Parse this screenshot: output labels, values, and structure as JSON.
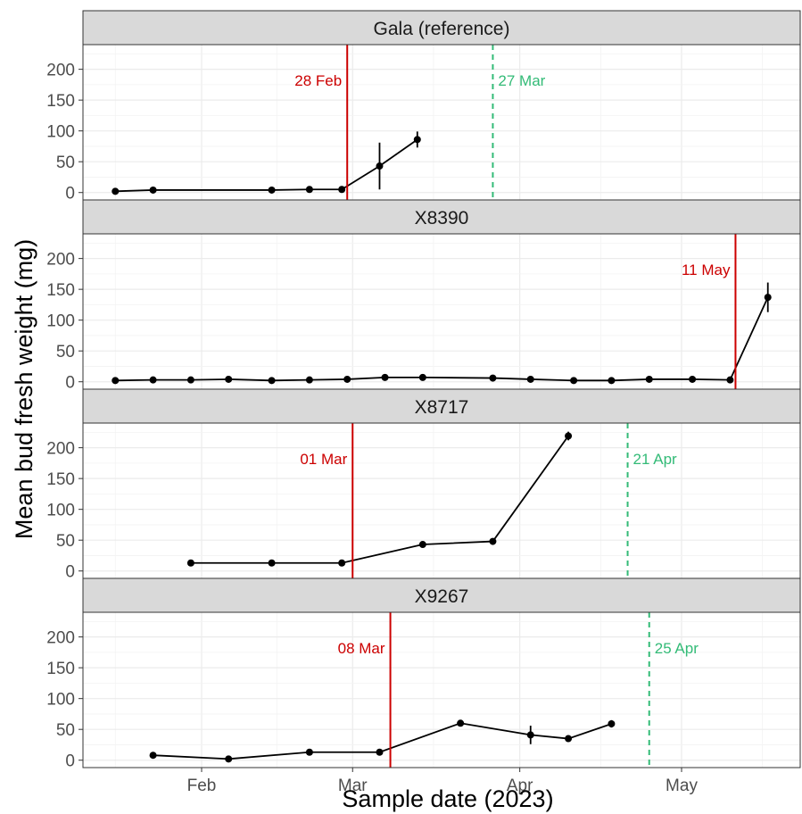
{
  "chart_data": {
    "type": "line",
    "xlabel": "Sample date (2023)",
    "ylabel": "Mean bud fresh weight (mg)",
    "x_tick_labels": [
      {
        "date": "2023-02-01",
        "label": "Feb"
      },
      {
        "date": "2023-03-01",
        "label": "Mar"
      },
      {
        "date": "2023-04-01",
        "label": "Apr"
      },
      {
        "date": "2023-05-01",
        "label": "May"
      }
    ],
    "x_range": [
      "2023-01-10",
      "2023-05-23"
    ],
    "ylim": [
      -12,
      240
    ],
    "y_ticks": [
      0,
      50,
      100,
      150,
      200
    ],
    "grid": true,
    "colors": {
      "event_solid": "#cc0000",
      "event_dashed": "#33bb77",
      "series": "#000000",
      "strip_fill": "#d9d9d9",
      "grid": "#ebebeb"
    },
    "panels": [
      {
        "title": "Gala (reference)",
        "points": [
          {
            "x": "2023-01-16",
            "y": 2,
            "err": 0
          },
          {
            "x": "2023-01-23",
            "y": 4,
            "err": 0
          },
          {
            "x": "2023-02-14",
            "y": 4,
            "err": 0
          },
          {
            "x": "2023-02-21",
            "y": 5,
            "err": 0
          },
          {
            "x": "2023-02-27",
            "y": 5,
            "err": 0
          },
          {
            "x": "2023-03-06",
            "y": 43,
            "err": 38
          },
          {
            "x": "2023-03-13",
            "y": 86,
            "err": 13
          }
        ],
        "solid_line": {
          "x": "2023-02-28",
          "label": "28 Feb"
        },
        "dashed_line": {
          "x": "2023-03-27",
          "label": "27 Mar"
        }
      },
      {
        "title": "X8390",
        "points": [
          {
            "x": "2023-01-16",
            "y": 2,
            "err": 0
          },
          {
            "x": "2023-01-23",
            "y": 3,
            "err": 0
          },
          {
            "x": "2023-01-30",
            "y": 3,
            "err": 0
          },
          {
            "x": "2023-02-06",
            "y": 4,
            "err": 0
          },
          {
            "x": "2023-02-14",
            "y": 2,
            "err": 0
          },
          {
            "x": "2023-02-21",
            "y": 3,
            "err": 0
          },
          {
            "x": "2023-02-28",
            "y": 4,
            "err": 0
          },
          {
            "x": "2023-03-07",
            "y": 7,
            "err": 0
          },
          {
            "x": "2023-03-14",
            "y": 7,
            "err": 0
          },
          {
            "x": "2023-03-27",
            "y": 6,
            "err": 0
          },
          {
            "x": "2023-04-03",
            "y": 4,
            "err": 0
          },
          {
            "x": "2023-04-11",
            "y": 2,
            "err": 0
          },
          {
            "x": "2023-04-18",
            "y": 2,
            "err": 0
          },
          {
            "x": "2023-04-25",
            "y": 4,
            "err": 0
          },
          {
            "x": "2023-05-03",
            "y": 4,
            "err": 0
          },
          {
            "x": "2023-05-10",
            "y": 3,
            "err": 0
          },
          {
            "x": "2023-05-17",
            "y": 137,
            "err": 24
          }
        ],
        "solid_line": {
          "x": "2023-05-11",
          "label": "11 May"
        },
        "dashed_line": null
      },
      {
        "title": "X8717",
        "points": [
          {
            "x": "2023-01-30",
            "y": 13,
            "err": 0
          },
          {
            "x": "2023-02-14",
            "y": 13,
            "err": 0
          },
          {
            "x": "2023-02-27",
            "y": 13,
            "err": 0
          },
          {
            "x": "2023-03-14",
            "y": 43,
            "err": 0
          },
          {
            "x": "2023-03-27",
            "y": 48,
            "err": 5
          },
          {
            "x": "2023-04-10",
            "y": 219,
            "err": 7
          }
        ],
        "solid_line": {
          "x": "2023-03-01",
          "label": "01 Mar"
        },
        "dashed_line": {
          "x": "2023-04-21",
          "label": "21 Apr"
        }
      },
      {
        "title": "X9267",
        "points": [
          {
            "x": "2023-01-23",
            "y": 8,
            "err": 0
          },
          {
            "x": "2023-02-06",
            "y": 2,
            "err": 4
          },
          {
            "x": "2023-02-21",
            "y": 13,
            "err": 0
          },
          {
            "x": "2023-03-06",
            "y": 13,
            "err": 0
          },
          {
            "x": "2023-03-21",
            "y": 60,
            "err": 0
          },
          {
            "x": "2023-04-03",
            "y": 41,
            "err": 15
          },
          {
            "x": "2023-04-10",
            "y": 35,
            "err": 0
          },
          {
            "x": "2023-04-18",
            "y": 59,
            "err": 6
          }
        ],
        "solid_line": {
          "x": "2023-03-08",
          "label": "08 Mar"
        },
        "dashed_line": {
          "x": "2023-04-25",
          "label": "25 Apr"
        }
      }
    ]
  }
}
